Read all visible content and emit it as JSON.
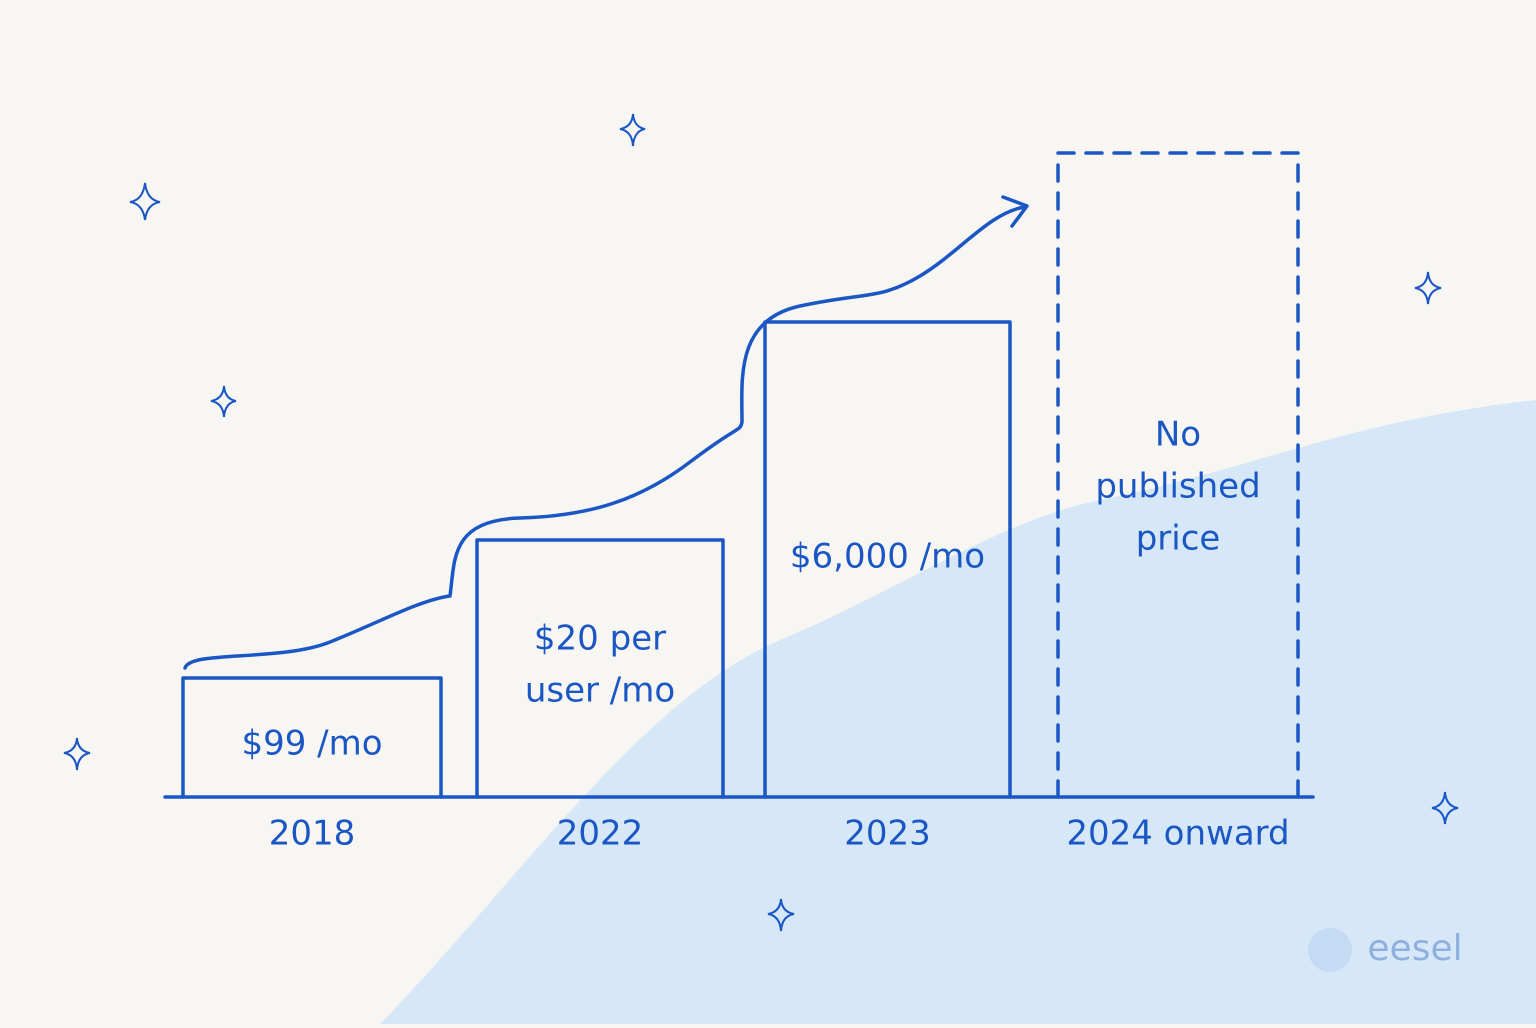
{
  "steps": [
    {
      "year": "2018",
      "label": [
        "$99 /mo"
      ]
    },
    {
      "year": "2022",
      "label": [
        "$20 per",
        "user /mo"
      ]
    },
    {
      "year": "2023",
      "label": [
        "$6,000 /mo"
      ]
    },
    {
      "year": "2024 onward",
      "label": [
        "No",
        "published",
        "price"
      ]
    }
  ],
  "logo": "eesel"
}
